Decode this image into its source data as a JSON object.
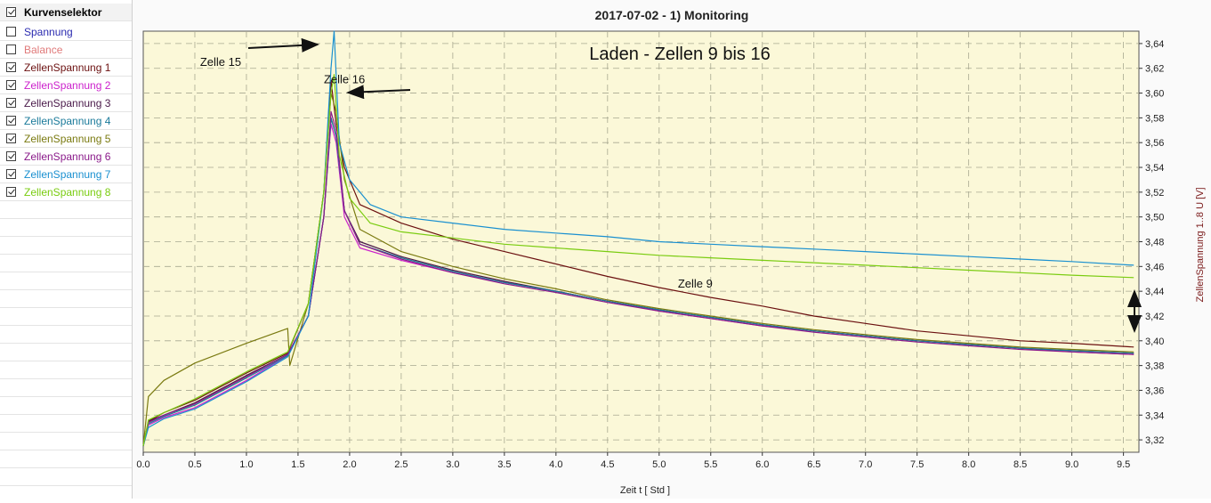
{
  "sidebar": {
    "header": "Kurvenselektor",
    "items": [
      {
        "label": "Spannung",
        "checked": false,
        "color": "#2b2bb0"
      },
      {
        "label": "Balance",
        "checked": false,
        "color": "#e07a7a"
      },
      {
        "label": "ZellenSpannung 1",
        "checked": true,
        "color": "#6b1010"
      },
      {
        "label": "ZellenSpannung 2",
        "checked": true,
        "color": "#cc22cc"
      },
      {
        "label": "ZellenSpannung 3",
        "checked": true,
        "color": "#4a1a4a"
      },
      {
        "label": "ZellenSpannung 4",
        "checked": true,
        "color": "#1a7a9a"
      },
      {
        "label": "ZellenSpannung 5",
        "checked": true,
        "color": "#7a7a10"
      },
      {
        "label": "ZellenSpannung 6",
        "checked": true,
        "color": "#8a1a8a"
      },
      {
        "label": "ZellenSpannung 7",
        "checked": true,
        "color": "#1a90d0"
      },
      {
        "label": "ZellenSpannung 8",
        "checked": true,
        "color": "#7acc10"
      }
    ]
  },
  "chart_data": {
    "type": "line",
    "title": "2017-07-02  -  1) Monitoring",
    "xlabel": "Zeit   t   [ Std ]",
    "ylabel": "ZellenSpannung 1..8   U   [V]",
    "xlim": [
      0,
      9.65
    ],
    "ylim": [
      3.31,
      3.65
    ],
    "x_ticks": [
      "0.0",
      "0.5",
      "1.0",
      "1.5",
      "2.0",
      "2.5",
      "3.0",
      "3.5",
      "4.0",
      "4.5",
      "5.0",
      "5.5",
      "6.0",
      "6.5",
      "7.0",
      "7.5",
      "8.0",
      "8.5",
      "9.0",
      "9.5"
    ],
    "y_ticks": [
      "3,32",
      "3,34",
      "3,36",
      "3,38",
      "3,40",
      "3,42",
      "3,44",
      "3,46",
      "3,48",
      "3,50",
      "3,52",
      "3,54",
      "3,56",
      "3,58",
      "3,60",
      "3,62",
      "3,64"
    ],
    "grid": true,
    "background": "#fbf8d8",
    "series": [
      {
        "name": "ZellenSpannung 1",
        "color": "#6b1010",
        "x": [
          0,
          0.05,
          0.2,
          0.5,
          1.0,
          1.4,
          1.6,
          1.75,
          1.82,
          1.87,
          1.95,
          2.1,
          2.5,
          3.0,
          3.5,
          4.0,
          4.5,
          5.0,
          5.5,
          6.0,
          6.5,
          7.0,
          7.5,
          8.0,
          8.5,
          9.0,
          9.6
        ],
        "y": [
          3.315,
          3.335,
          3.342,
          3.352,
          3.374,
          3.39,
          3.43,
          3.52,
          3.61,
          3.575,
          3.54,
          3.51,
          3.495,
          3.482,
          3.472,
          3.462,
          3.452,
          3.443,
          3.435,
          3.428,
          3.42,
          3.414,
          3.408,
          3.404,
          3.4,
          3.398,
          3.395
        ]
      },
      {
        "name": "ZellenSpannung 2",
        "color": "#cc22cc",
        "x": [
          0,
          0.05,
          0.2,
          0.5,
          1.0,
          1.4,
          1.6,
          1.75,
          1.82,
          1.87,
          1.95,
          2.1,
          2.5,
          3.0,
          3.5,
          4.0,
          4.5,
          5.0,
          5.5,
          6.0,
          6.5,
          7.0,
          7.5,
          8.0,
          8.5,
          9.0,
          9.6
        ],
        "y": [
          3.315,
          3.332,
          3.338,
          3.346,
          3.368,
          3.388,
          3.42,
          3.5,
          3.575,
          3.56,
          3.5,
          3.475,
          3.465,
          3.455,
          3.447,
          3.44,
          3.432,
          3.424,
          3.418,
          3.412,
          3.408,
          3.404,
          3.4,
          3.397,
          3.394,
          3.391,
          3.389
        ]
      },
      {
        "name": "ZellenSpannung 3",
        "color": "#4a1a4a",
        "x": [
          0,
          0.05,
          0.2,
          0.5,
          1.0,
          1.4,
          1.6,
          1.75,
          1.82,
          1.87,
          1.95,
          2.1,
          2.5,
          3.0,
          3.5,
          4.0,
          4.5,
          5.0,
          5.5,
          6.0,
          6.5,
          7.0,
          7.5,
          8.0,
          8.5,
          9.0,
          9.6
        ],
        "y": [
          3.315,
          3.335,
          3.34,
          3.35,
          3.372,
          3.389,
          3.42,
          3.5,
          3.58,
          3.565,
          3.505,
          3.48,
          3.468,
          3.457,
          3.448,
          3.44,
          3.432,
          3.425,
          3.419,
          3.413,
          3.408,
          3.404,
          3.4,
          3.397,
          3.394,
          3.392,
          3.39
        ]
      },
      {
        "name": "ZellenSpannung 4",
        "color": "#1a7a9a",
        "x": [
          0,
          0.05,
          0.2,
          0.5,
          1.0,
          1.4,
          1.6,
          1.75,
          1.82,
          1.87,
          1.95,
          2.1,
          2.5,
          3.0,
          3.5,
          4.0,
          4.5,
          5.0,
          5.5,
          6.0,
          6.5,
          7.0,
          7.5,
          8.0,
          8.5,
          9.0,
          9.6
        ],
        "y": [
          3.315,
          3.333,
          3.339,
          3.348,
          3.37,
          3.388,
          3.42,
          3.5,
          3.58,
          3.565,
          3.505,
          3.478,
          3.467,
          3.456,
          3.447,
          3.44,
          3.432,
          3.425,
          3.419,
          3.413,
          3.408,
          3.404,
          3.4,
          3.397,
          3.394,
          3.392,
          3.39
        ]
      },
      {
        "name": "ZellenSpannung 5",
        "color": "#7a7a10",
        "x": [
          0,
          0.05,
          0.2,
          0.5,
          1.0,
          1.4,
          1.42,
          1.6,
          1.75,
          1.82,
          1.87,
          1.95,
          2.1,
          2.5,
          3.0,
          3.5,
          4.0,
          4.5,
          5.0,
          5.5,
          6.0,
          6.5,
          7.0,
          7.5,
          8.0,
          8.5,
          9.0,
          9.6
        ],
        "y": [
          3.315,
          3.355,
          3.368,
          3.382,
          3.398,
          3.41,
          3.38,
          3.43,
          3.52,
          3.6,
          3.585,
          3.53,
          3.49,
          3.472,
          3.46,
          3.45,
          3.442,
          3.433,
          3.426,
          3.42,
          3.414,
          3.409,
          3.405,
          3.401,
          3.398,
          3.395,
          3.393,
          3.391
        ]
      },
      {
        "name": "ZellenSpannung 6",
        "color": "#8a1a8a",
        "x": [
          0,
          0.05,
          0.2,
          0.5,
          1.0,
          1.4,
          1.6,
          1.75,
          1.82,
          1.87,
          1.95,
          2.1,
          2.5,
          3.0,
          3.5,
          4.0,
          4.5,
          5.0,
          5.5,
          6.0,
          6.5,
          7.0,
          7.5,
          8.0,
          8.5,
          9.0,
          9.6
        ],
        "y": [
          3.315,
          3.334,
          3.34,
          3.349,
          3.371,
          3.389,
          3.42,
          3.5,
          3.585,
          3.57,
          3.505,
          3.478,
          3.466,
          3.455,
          3.446,
          3.439,
          3.431,
          3.424,
          3.418,
          3.412,
          3.407,
          3.403,
          3.399,
          3.396,
          3.393,
          3.391,
          3.389
        ]
      },
      {
        "name": "ZellenSpannung 7",
        "color": "#1a90d0",
        "x": [
          0,
          0.05,
          0.2,
          0.5,
          1.0,
          1.4,
          1.6,
          1.75,
          1.82,
          1.85,
          1.9,
          2.0,
          2.2,
          2.5,
          3.0,
          3.5,
          4.0,
          4.5,
          5.0,
          5.5,
          6.0,
          6.5,
          7.0,
          7.5,
          8.0,
          8.5,
          9.0,
          9.6
        ],
        "y": [
          3.315,
          3.33,
          3.337,
          3.345,
          3.367,
          3.387,
          3.42,
          3.52,
          3.62,
          3.65,
          3.56,
          3.53,
          3.51,
          3.5,
          3.495,
          3.49,
          3.487,
          3.484,
          3.48,
          3.478,
          3.476,
          3.474,
          3.472,
          3.47,
          3.468,
          3.466,
          3.464,
          3.461
        ]
      },
      {
        "name": "ZellenSpannung 8",
        "color": "#7acc10",
        "x": [
          0,
          0.05,
          0.2,
          0.5,
          1.0,
          1.4,
          1.6,
          1.75,
          1.82,
          1.85,
          1.9,
          2.0,
          2.2,
          2.5,
          3.0,
          3.5,
          4.0,
          4.5,
          5.0,
          5.5,
          6.0,
          6.5,
          7.0,
          7.5,
          8.0,
          8.5,
          9.0,
          9.6
        ],
        "y": [
          3.315,
          3.336,
          3.342,
          3.353,
          3.375,
          3.391,
          3.43,
          3.52,
          3.6,
          3.615,
          3.55,
          3.515,
          3.495,
          3.488,
          3.483,
          3.478,
          3.475,
          3.472,
          3.469,
          3.467,
          3.465,
          3.463,
          3.461,
          3.459,
          3.457,
          3.455,
          3.453,
          3.451
        ]
      }
    ],
    "annotations": [
      {
        "text": "Laden - Zellen 9 bis 16",
        "x": 5.2,
        "y": 3.627
      },
      {
        "text": "Zelle 15",
        "x": 0.75,
        "y": 3.622
      },
      {
        "text": "Zelle 16",
        "x": 1.95,
        "y": 3.608
      },
      {
        "text": "Zelle 9",
        "x": 5.35,
        "y": 3.443
      }
    ]
  }
}
